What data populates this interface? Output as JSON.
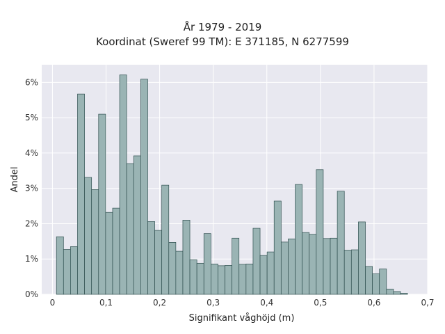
{
  "chart_data": {
    "type": "bar",
    "title_lines": [
      "År 1979 - 2019",
      "Koordinat (Sweref 99 TM): E 371185, N 6277599"
    ],
    "xlabel": "Signifikant våghöjd (m)",
    "ylabel": "Andel",
    "xlim": [
      -0.02,
      0.7
    ],
    "ylim": [
      0,
      6.5
    ],
    "x_ticks": [
      "0",
      "0,1",
      "0,2",
      "0,3",
      "0,4",
      "0,5",
      "0,6",
      "0,7"
    ],
    "x_tick_values": [
      0,
      0.1,
      0.2,
      0.3,
      0.4,
      0.5,
      0.6,
      0.7
    ],
    "y_ticks": [
      "0%",
      "1%",
      "2%",
      "3%",
      "4%",
      "5%",
      "6%"
    ],
    "y_tick_values": [
      0,
      1,
      2,
      3,
      4,
      5,
      6
    ],
    "bin_start": 0.0075,
    "bin_width": 0.0131,
    "values": [
      1.63,
      1.27,
      1.35,
      5.67,
      3.31,
      2.97,
      5.1,
      2.32,
      2.44,
      6.21,
      3.7,
      3.92,
      6.09,
      2.06,
      1.81,
      3.09,
      1.47,
      1.22,
      2.1,
      0.98,
      0.88,
      1.72,
      0.86,
      0.81,
      0.82,
      1.59,
      0.85,
      0.86,
      1.87,
      1.1,
      1.2,
      2.64,
      1.48,
      1.57,
      3.11,
      1.75,
      1.7,
      3.53,
      1.58,
      1.59,
      2.92,
      1.25,
      1.26,
      2.05,
      0.79,
      0.58,
      0.72,
      0.15,
      0.08,
      0.03
    ],
    "colors": {
      "plot_bg": "#e8e8f0",
      "grid": "#ffffff",
      "bar_fill": "#9ab4b4",
      "bar_edge": "#2f4f4f"
    }
  }
}
